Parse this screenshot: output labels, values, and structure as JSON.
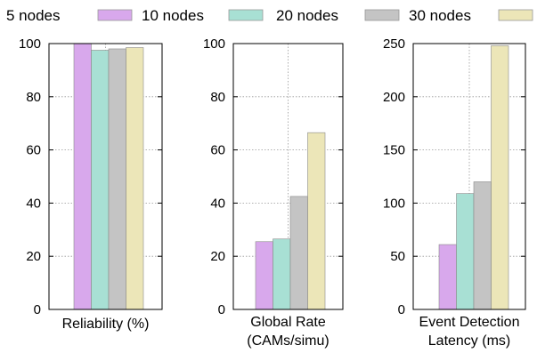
{
  "legend": {
    "entries": [
      {
        "label": "5 nodes",
        "color": ""
      },
      {
        "label": "10 nodes",
        "color": "#d8a8ec"
      },
      {
        "label": "20 nodes",
        "color": "#a8e0d4"
      },
      {
        "label": "30 nodes",
        "color": "#c4c4c4"
      },
      {
        "label": "",
        "color": "#ece6b8"
      }
    ]
  },
  "chart_data": [
    {
      "type": "bar",
      "xlabel": [
        "Reliability (%)"
      ],
      "ylim": [
        0,
        100
      ],
      "yticks": [
        0,
        20,
        40,
        60,
        80,
        100
      ],
      "grid": true,
      "series": [
        {
          "name": "10 nodes",
          "color": "#d8a8ec",
          "values": [
            100
          ]
        },
        {
          "name": "20 nodes",
          "color": "#a8e0d4",
          "values": [
            97.5
          ]
        },
        {
          "name": "30 nodes",
          "color": "#c4c4c4",
          "values": [
            98
          ]
        },
        {
          "color": "#ece6b8",
          "values": [
            98.5
          ]
        }
      ]
    },
    {
      "type": "bar",
      "xlabel": [
        "Global Rate",
        "(CAMs/simu)"
      ],
      "ylim": [
        0,
        100
      ],
      "yticks": [
        0,
        20,
        40,
        60,
        80,
        100
      ],
      "grid": true,
      "series": [
        {
          "name": "10 nodes",
          "color": "#d8a8ec",
          "values": [
            25.5
          ]
        },
        {
          "name": "20 nodes",
          "color": "#a8e0d4",
          "values": [
            26.5
          ]
        },
        {
          "name": "30 nodes",
          "color": "#c4c4c4",
          "values": [
            42.5
          ]
        },
        {
          "color": "#ece6b8",
          "values": [
            66.5
          ]
        }
      ]
    },
    {
      "type": "bar",
      "xlabel": [
        "Event Detection",
        "Latency (ms)"
      ],
      "ylim": [
        0,
        250
      ],
      "yticks": [
        0,
        50,
        100,
        150,
        200,
        250
      ],
      "grid": true,
      "series": [
        {
          "name": "10 nodes",
          "color": "#d8a8ec",
          "values": [
            61
          ]
        },
        {
          "name": "20 nodes",
          "color": "#a8e0d4",
          "values": [
            109
          ]
        },
        {
          "name": "30 nodes",
          "color": "#c4c4c4",
          "values": [
            120
          ]
        },
        {
          "color": "#ece6b8",
          "values": [
            248
          ]
        }
      ]
    }
  ]
}
